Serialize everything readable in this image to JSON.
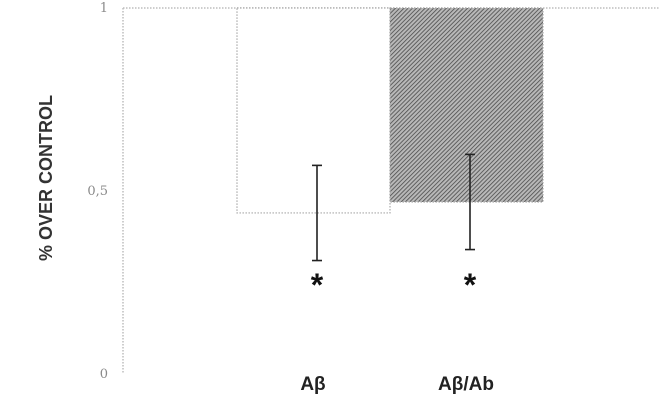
{
  "chart_data": {
    "type": "bar",
    "ylabel": "% OVER CONTROL",
    "xlabel": "",
    "ylim": [
      0,
      1
    ],
    "y_ticks": [
      {
        "value": 0,
        "label": "0"
      },
      {
        "value": 0.5,
        "label": "0,5"
      },
      {
        "value": 1,
        "label": "1"
      }
    ],
    "categories": [
      "Aβ",
      "Aβ/Ab"
    ],
    "values": [
      0.44,
      0.47
    ],
    "error": [
      0.13,
      0.13
    ],
    "significance": [
      "*",
      "*"
    ],
    "bar_fills": [
      "#ffffff",
      "#8c8c8c"
    ],
    "bar_patterns": [
      "none",
      "hatched"
    ],
    "reference_line": 1,
    "grid": false,
    "legend": "none"
  }
}
